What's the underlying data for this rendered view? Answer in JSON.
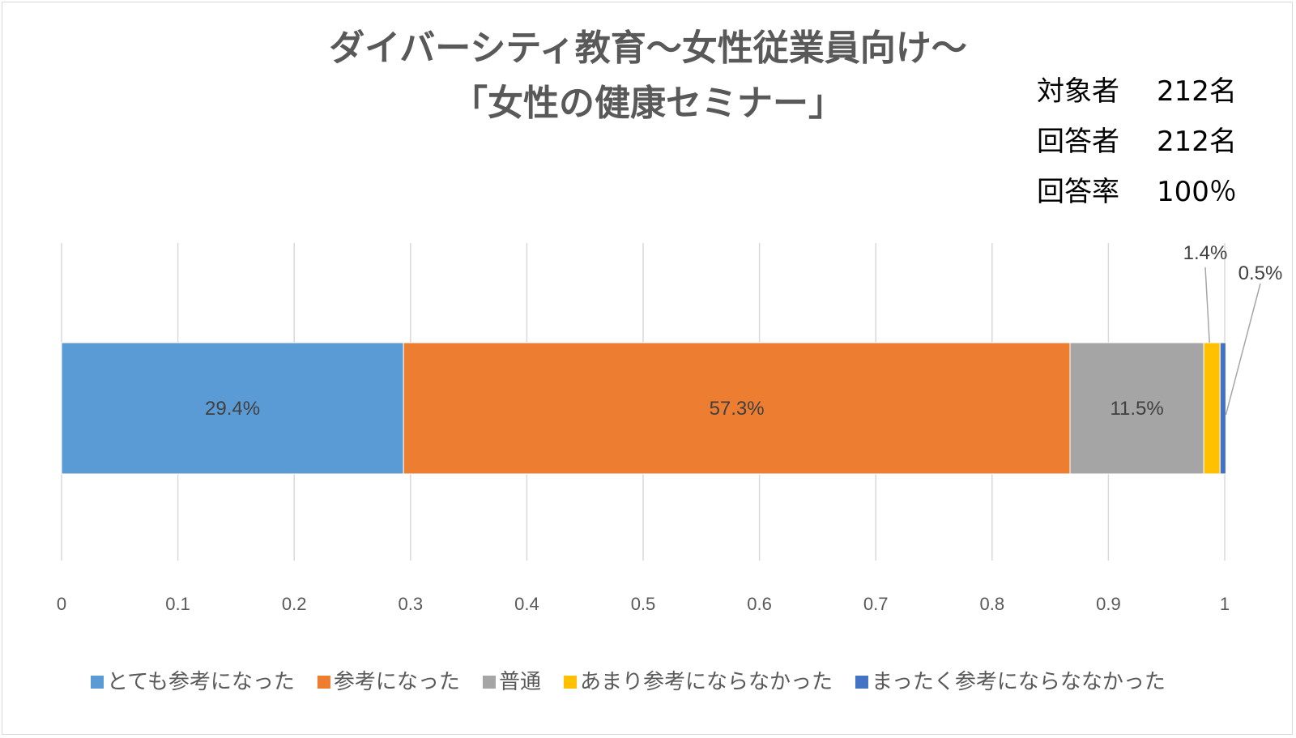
{
  "chart_data": {
    "type": "bar",
    "orientation": "horizontal",
    "stacked": true,
    "title": [
      "ダイバーシティ教育～女性従業員向け～",
      "「女性の健康セミナー」"
    ],
    "series": [
      {
        "name": "とても参考になった",
        "value": 0.294,
        "label": "29.4%",
        "color": "#5b9bd5"
      },
      {
        "name": "参考になった",
        "value": 0.573,
        "label": "57.3%",
        "color": "#ed7d31"
      },
      {
        "name": "普通",
        "value": 0.115,
        "label": "11.5%",
        "color": "#a5a5a5"
      },
      {
        "name": "あまり参考にならなかった",
        "value": 0.014,
        "label": "1.4%",
        "color": "#ffc000"
      },
      {
        "name": "まったく参考にならななかった",
        "value": 0.005,
        "label": "0.5%",
        "color": "#4472c4"
      }
    ],
    "xlim": [
      0,
      1
    ],
    "xticks": [
      0,
      0.1,
      0.2,
      0.3,
      0.4,
      0.5,
      0.6,
      0.7,
      0.8,
      0.9,
      1
    ],
    "xtick_labels": [
      "0",
      "0.1",
      "0.2",
      "0.3",
      "0.4",
      "0.5",
      "0.6",
      "0.7",
      "0.8",
      "0.9",
      "1"
    ],
    "grid": true,
    "legend": "bottom"
  },
  "stats": [
    {
      "label": "対象者",
      "value": "212名"
    },
    {
      "label": "回答者",
      "value": "212名"
    },
    {
      "label": "回答率",
      "value": "100％"
    }
  ]
}
